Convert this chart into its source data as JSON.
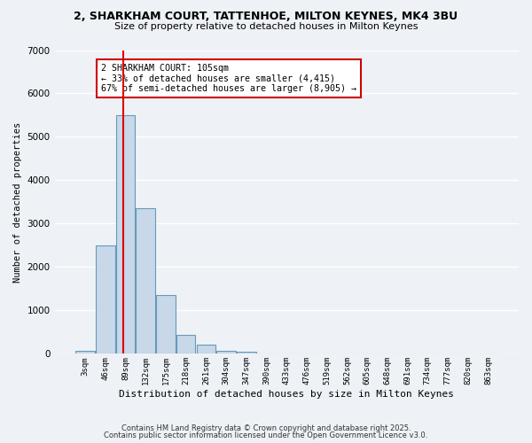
{
  "title1": "2, SHARKHAM COURT, TATTENHOE, MILTON KEYNES, MK4 3BU",
  "title2": "Size of property relative to detached houses in Milton Keynes",
  "xlabel": "Distribution of detached houses by size in Milton Keynes",
  "ylabel": "Number of detached properties",
  "bin_labels": [
    "3sqm",
    "46sqm",
    "89sqm",
    "132sqm",
    "175sqm",
    "218sqm",
    "261sqm",
    "304sqm",
    "347sqm",
    "390sqm",
    "433sqm",
    "476sqm",
    "519sqm",
    "562sqm",
    "605sqm",
    "648sqm",
    "691sqm",
    "734sqm",
    "777sqm",
    "820sqm",
    "863sqm"
  ],
  "bar_heights": [
    70,
    2500,
    5500,
    3350,
    1350,
    430,
    210,
    70,
    50,
    0,
    0,
    0,
    0,
    0,
    0,
    0,
    0,
    0,
    0,
    0,
    0
  ],
  "bar_color": "#c8d8e8",
  "bar_edgecolor": "#6699bb",
  "bar_linewidth": 0.8,
  "red_line_color": "#dd0000",
  "annotation_text": "2 SHARKHAM COURT: 105sqm\n← 33% of detached houses are smaller (4,415)\n67% of semi-detached houses are larger (8,905) →",
  "annotation_box_edgecolor": "#cc0000",
  "annotation_box_facecolor": "#ffffff",
  "ylim": [
    0,
    7000
  ],
  "yticks": [
    0,
    1000,
    2000,
    3000,
    4000,
    5000,
    6000,
    7000
  ],
  "background_color": "#eef2f7",
  "grid_color": "#ffffff",
  "footer1": "Contains HM Land Registry data © Crown copyright and database right 2025.",
  "footer2": "Contains public sector information licensed under the Open Government Licence v3.0."
}
